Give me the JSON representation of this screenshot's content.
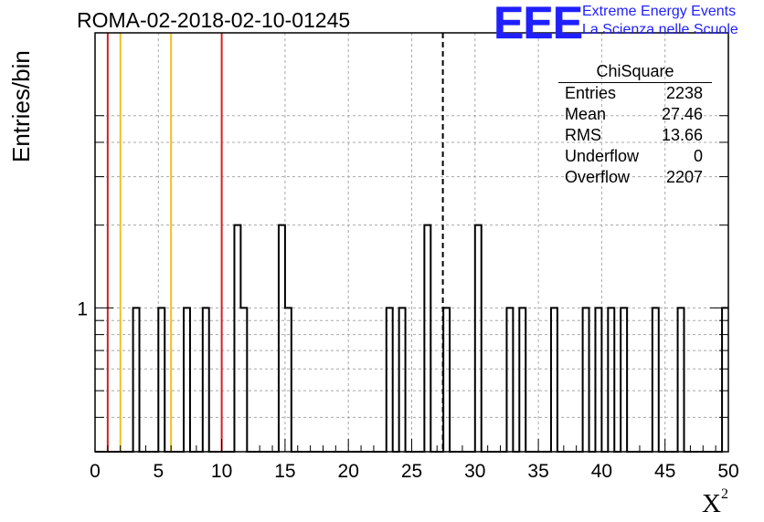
{
  "header": {
    "title": "ROMA-02-2018-02-10-01245",
    "logo_text": "EEE",
    "logo_line1": "Extreme Energy Events",
    "logo_line2": "La Scienza nelle Scuole"
  },
  "stats": {
    "name": "ChiSquare",
    "rows": [
      {
        "label": "Entries",
        "value": "2238"
      },
      {
        "label": "Mean",
        "value": "27.46"
      },
      {
        "label": "RMS",
        "value": "13.66"
      },
      {
        "label": "Underflow",
        "value": "0"
      },
      {
        "label": "Overflow",
        "value": "2207"
      }
    ]
  },
  "chart_data": {
    "type": "histogram",
    "title": "ROMA-02-2018-02-10-01245",
    "xlabel": "X",
    "xlabel_superscript": "2",
    "ylabel": "Entries/bin",
    "xlim": [
      0,
      50
    ],
    "y_scale": "log",
    "ylim": [
      0.3,
      10
    ],
    "grid": true,
    "bin_width": 0.5,
    "x_ticks": [
      0,
      5,
      10,
      15,
      20,
      25,
      30,
      35,
      40,
      45,
      50
    ],
    "y_tick_labels": [
      1
    ],
    "bins": [
      {
        "x": 3.0,
        "count": 1
      },
      {
        "x": 5.0,
        "count": 1
      },
      {
        "x": 7.0,
        "count": 1
      },
      {
        "x": 8.5,
        "count": 1
      },
      {
        "x": 11.0,
        "count": 2
      },
      {
        "x": 11.5,
        "count": 1
      },
      {
        "x": 14.5,
        "count": 2
      },
      {
        "x": 15.0,
        "count": 1
      },
      {
        "x": 23.0,
        "count": 1
      },
      {
        "x": 24.0,
        "count": 1
      },
      {
        "x": 26.0,
        "count": 2
      },
      {
        "x": 27.5,
        "count": 1
      },
      {
        "x": 30.0,
        "count": 2
      },
      {
        "x": 32.5,
        "count": 1
      },
      {
        "x": 33.5,
        "count": 1
      },
      {
        "x": 36.0,
        "count": 1
      },
      {
        "x": 38.5,
        "count": 1
      },
      {
        "x": 39.5,
        "count": 1
      },
      {
        "x": 40.5,
        "count": 1
      },
      {
        "x": 41.5,
        "count": 1
      },
      {
        "x": 44.0,
        "count": 1
      },
      {
        "x": 46.0,
        "count": 1
      },
      {
        "x": 49.5,
        "count": 1
      }
    ],
    "vertical_lines": [
      {
        "x": 1,
        "color": "#d42020",
        "style": "solid"
      },
      {
        "x": 2,
        "color": "#f0c020",
        "style": "solid"
      },
      {
        "x": 6,
        "color": "#f0c020",
        "style": "solid"
      },
      {
        "x": 10,
        "color": "#d42020",
        "style": "solid"
      },
      {
        "x": 27.46,
        "color": "#000000",
        "style": "dashed"
      }
    ]
  }
}
